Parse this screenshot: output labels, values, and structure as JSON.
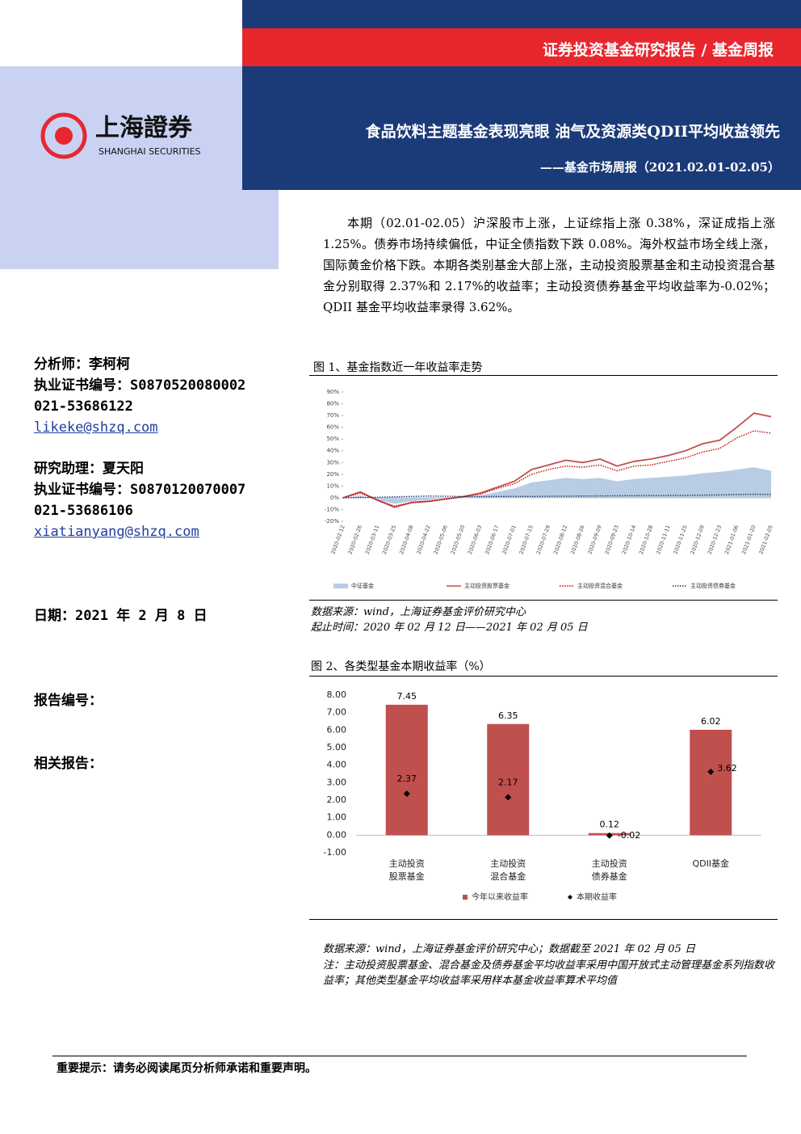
{
  "header": {
    "series_title": "证券投资基金研究报告 / 基金周报",
    "title": "食品饮料主题基金表现亮眼 油气及资源类QDII平均收益领先",
    "subtitle": "——基金市场周报（2021.02.01-02.05）",
    "logo_cn": "上海證券",
    "logo_en": "SHANGHAI SECURITIES"
  },
  "sidebar": {
    "analyst": [
      "分析师：李柯柯",
      "执业证书编号：S0870520080002",
      "021-53686122",
      "likeke@shzq.com"
    ],
    "assistant": [
      "研究助理：夏天阳",
      "执业证书编号：S0870120070007",
      "021-53686106",
      "xiatianyang@shzq.com"
    ],
    "date": "日期：2021 年 2 月 8 日",
    "report_no": "报告编号：",
    "related": "相关报告："
  },
  "summary": "本期（02.01-02.05）沪深股市上涨，上证综指上涨 0.38%，深证成指上涨 1.25%。债券市场持续偏低，中证全债指数下跌 0.08%。海外权益市场全线上涨，国际黄金价格下跌。本期各类别基金大部上涨，主动投资股票基金和主动投资混合基金分别取得 2.37%和 2.17%的收益率；主动投资债券基金平均收益率为-0.02%；QDII 基金平均收益率录得 3.62%。",
  "figure1": {
    "caption": "图 1、基金指数近一年收益率走势",
    "source": "数据来源：wind，上海证券基金评价研究中心",
    "period": "起止时间：2020 年 02 月 12 日——2021 年 02 月 05 日"
  },
  "figure2": {
    "caption": "图 2、各类型基金本期收益率（%）",
    "source": "数据来源：wind，上海证券基金评价研究中心；数据截至 2021 年 02 月 05 日",
    "note": "注：主动投资股票基金、混合基金及债券基金平均收益率采用中国开放式主动管理基金系列指数收益率；其他类型基金平均收益率采用样本基金收益率算术平均值"
  },
  "footer": "重要提示：请务必阅读尾页分析师承诺和重要声明。",
  "chart_data": [
    {
      "type": "line",
      "categories": [
        "2020-02-12",
        "2020-02-26",
        "2020-03-11",
        "2020-03-25",
        "2020-04-08",
        "2020-04-22",
        "2020-05-06",
        "2020-05-20",
        "2020-06-03",
        "2020-06-17",
        "2020-07-01",
        "2020-07-15",
        "2020-07-29",
        "2020-08-12",
        "2020-08-26",
        "2020-09-09",
        "2020-09-23",
        "2020-10-14",
        "2020-10-28",
        "2020-11-11",
        "2020-11-25",
        "2020-12-09",
        "2020-12-23",
        "2021-01-06",
        "2021-01-20",
        "2021-02-05"
      ],
      "series": [
        {
          "name": "中证基金",
          "color": "#b8cce4",
          "style": "area",
          "values": [
            0,
            2,
            -2,
            -5,
            -3,
            -2,
            0,
            1,
            2,
            5,
            8,
            13,
            15,
            17,
            16,
            17,
            14,
            16,
            17,
            18,
            19,
            21,
            22,
            24,
            26,
            23
          ]
        },
        {
          "name": "主动投资股票基金",
          "color": "#c0504d",
          "style": "solid",
          "values": [
            0,
            5,
            -2,
            -8,
            -4,
            -3,
            -1,
            1,
            4,
            9,
            14,
            24,
            28,
            32,
            30,
            33,
            27,
            31,
            33,
            36,
            40,
            46,
            49,
            60,
            72,
            69
          ]
        },
        {
          "name": "主动投资混合基金",
          "color": "#c00000",
          "style": "dotted",
          "values": [
            0,
            4,
            -2,
            -7,
            -4,
            -3,
            -1,
            1,
            3,
            8,
            12,
            20,
            24,
            27,
            26,
            28,
            23,
            27,
            28,
            31,
            34,
            39,
            42,
            51,
            57,
            55
          ]
        },
        {
          "name": "主动投资债券基金",
          "color": "#1f3864",
          "style": "dotted",
          "values": [
            0,
            0.3,
            0.5,
            0.8,
            1.2,
            1.5,
            1.3,
            1.1,
            1.0,
            1.1,
            1.2,
            1.1,
            1.3,
            1.4,
            1.5,
            1.6,
            1.7,
            1.8,
            1.9,
            2,
            2.1,
            2.3,
            2.5,
            2.8,
            3.0,
            2.9
          ]
        }
      ],
      "ylim": [
        -20,
        90
      ],
      "yticks": [
        {
          "value": -20,
          "label": "-20%"
        },
        {
          "value": -10,
          "label": "-10%"
        },
        {
          "value": 0,
          "label": "0%"
        },
        {
          "value": 10,
          "label": "10%"
        },
        {
          "value": 20,
          "label": "20%"
        },
        {
          "value": 30,
          "label": "30%"
        },
        {
          "value": 40,
          "label": "40%"
        },
        {
          "value": 50,
          "label": "50%"
        },
        {
          "value": 60,
          "label": "60%"
        },
        {
          "value": 70,
          "label": "70%"
        },
        {
          "value": 80,
          "label": "80%"
        },
        {
          "value": 90,
          "label": "90%"
        }
      ],
      "grid": false,
      "legend": "bottom"
    },
    {
      "type": "bar",
      "categories": [
        [
          "主动投资",
          "股票基金"
        ],
        [
          "主动投资",
          "混合基金"
        ],
        [
          "主动投资",
          "债券基金"
        ],
        [
          "QDII基金"
        ]
      ],
      "series": [
        {
          "name": "今年以来收益率",
          "color": "#c0504d",
          "marker": "bar",
          "values": [
            7.45,
            6.35,
            0.12,
            6.02
          ]
        },
        {
          "name": "本期收益率",
          "color": "#000000",
          "marker": "diamond",
          "values": [
            2.37,
            2.17,
            -0.02,
            3.62
          ]
        }
      ],
      "ylim": [
        -1,
        8
      ],
      "yticks": [
        {
          "value": -1,
          "label": "-1.00"
        },
        {
          "value": 0,
          "label": "0.00"
        },
        {
          "value": 1,
          "label": "1.00"
        },
        {
          "value": 2,
          "label": "2.00"
        },
        {
          "value": 3,
          "label": "3.00"
        },
        {
          "value": 4,
          "label": "4.00"
        },
        {
          "value": 5,
          "label": "5.00"
        },
        {
          "value": 6,
          "label": "6.00"
        },
        {
          "value": 7,
          "label": "7.00"
        },
        {
          "value": 8,
          "label": "8.00"
        }
      ],
      "grid": false,
      "legend": "bottom"
    }
  ]
}
